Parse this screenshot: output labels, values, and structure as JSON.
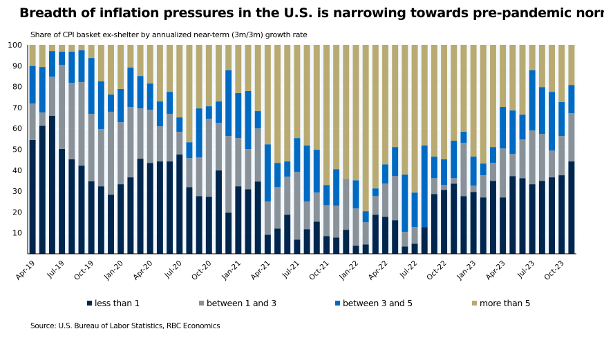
{
  "chart_data": {
    "type": "bar",
    "stacked": true,
    "title": "Breadth of inflation pressures in the U.S. is narrowing towards pre-pandemic norms",
    "subtitle": "Share of CPI basket ex-shelter by annualized near-term (3m/3m) growth rate",
    "source": "Source: U.S. Bureau of Labor Statistics, RBC Economics",
    "xlabel": "",
    "ylabel": "",
    "ylim": [
      0,
      100
    ],
    "yticks": [
      10,
      20,
      30,
      40,
      50,
      60,
      70,
      80,
      90,
      100
    ],
    "grid": true,
    "legend_position": "bottom",
    "categories": [
      "Apr-19",
      "May-19",
      "Jun-19",
      "Jul-19",
      "Aug-19",
      "Sep-19",
      "Oct-19",
      "Nov-19",
      "Dec-19",
      "Jan-20",
      "Feb-20",
      "Mar-20",
      "Apr-20",
      "May-20",
      "Jun-20",
      "Jul-20",
      "Aug-20",
      "Sep-20",
      "Oct-20",
      "Nov-20",
      "Dec-20",
      "Jan-21",
      "Feb-21",
      "Mar-21",
      "Apr-21",
      "May-21",
      "Jun-21",
      "Jul-21",
      "Aug-21",
      "Sep-21",
      "Oct-21",
      "Nov-21",
      "Dec-21",
      "Jan-22",
      "Feb-22",
      "Mar-22",
      "Apr-22",
      "May-22",
      "Jun-22",
      "Jul-22",
      "Aug-22",
      "Sep-22",
      "Oct-22",
      "Nov-22",
      "Dec-22",
      "Jan-23",
      "Feb-23",
      "Mar-23",
      "Apr-23",
      "May-23",
      "Jun-23",
      "Jul-23",
      "Aug-23",
      "Sep-23",
      "Oct-23",
      "Nov-23"
    ],
    "xtick_labels": [
      "Apr-19",
      "Jul-19",
      "Oct-19",
      "Jan-20",
      "Apr-20",
      "Jul-20",
      "Oct-20",
      "Jan-21",
      "Apr-21",
      "Jul-21",
      "Oct-21",
      "Jan-22",
      "Apr-22",
      "Jul-22",
      "Oct-22",
      "Jan-23",
      "Apr-23",
      "Jul-23",
      "Oct-23"
    ],
    "series": [
      {
        "name": "less than 1",
        "color": "#00264D",
        "values": [
          54.5,
          61.3,
          66.1,
          50.2,
          45.2,
          42.2,
          34.7,
          32.3,
          28.3,
          33.3,
          36.6,
          45.5,
          43.5,
          44.2,
          44.2,
          47.5,
          31.9,
          27.6,
          27.3,
          39.9,
          19.7,
          32.3,
          30.9,
          34.6,
          9.1,
          12.1,
          18.7,
          6.8,
          11.8,
          15.4,
          8.5,
          7.8,
          11.5,
          3.9,
          4.5,
          18.7,
          17.7,
          16.1,
          3.5,
          4.8,
          12.8,
          28.6,
          30.6,
          33.6,
          27.6,
          29.6,
          27.0,
          34.9,
          27.0,
          37.2,
          36.2,
          33.3,
          34.9,
          36.6,
          37.6,
          44.2
        ]
      },
      {
        "name": "between 1 and 3",
        "color": "#8A9299",
        "values": [
          17.4,
          6.3,
          18.7,
          40.2,
          36.6,
          40.0,
          32.3,
          27.4,
          39.7,
          29.7,
          33.7,
          24.1,
          25.4,
          16.8,
          22.8,
          10.9,
          13.9,
          18.5,
          37.3,
          22.8,
          36.7,
          23.1,
          19.2,
          25.4,
          15.9,
          19.8,
          18.2,
          32.4,
          13.2,
          13.9,
          14.8,
          15.2,
          24.4,
          17.8,
          10.6,
          8.9,
          15.9,
          21.1,
          7.0,
          8.0,
          0.0,
          7.6,
          2.3,
          2.6,
          25.5,
          3.0,
          10.6,
          8.6,
          23.4,
          10.6,
          18.5,
          25.7,
          22.5,
          12.8,
          18.8,
          23.1
        ]
      },
      {
        "name": "between 3 and 5",
        "color": "#006AC3",
        "values": [
          18.0,
          21.8,
          12.2,
          6.3,
          14.9,
          15.2,
          26.7,
          22.8,
          8.2,
          15.9,
          18.8,
          15.5,
          12.6,
          11.9,
          10.5,
          6.9,
          7.6,
          23.5,
          6.0,
          10.2,
          31.4,
          21.5,
          27.8,
          8.3,
          27.4,
          11.6,
          7.3,
          16.2,
          26.8,
          20.5,
          9.6,
          17.5,
          0.0,
          13.5,
          5.3,
          3.7,
          9.2,
          13.9,
          27.4,
          16.5,
          39.0,
          10.3,
          12.3,
          17.9,
          5.3,
          13.9,
          5.6,
          7.6,
          19.9,
          20.8,
          11.9,
          28.8,
          22.4,
          28.1,
          16.2,
          13.5
        ]
      },
      {
        "name": "more than 5",
        "color": "#B9AA72",
        "values": [
          10.1,
          10.6,
          3.0,
          3.3,
          3.3,
          2.6,
          6.3,
          17.5,
          23.8,
          21.1,
          10.9,
          14.9,
          18.5,
          27.1,
          22.5,
          34.7,
          46.6,
          30.4,
          29.4,
          27.1,
          12.2,
          23.1,
          22.1,
          31.7,
          47.6,
          56.5,
          55.8,
          44.6,
          48.2,
          50.2,
          67.1,
          59.5,
          64.1,
          64.8,
          79.6,
          68.7,
          57.2,
          48.9,
          62.1,
          70.7,
          48.2,
          53.5,
          54.8,
          45.9,
          41.6,
          53.5,
          56.8,
          48.9,
          29.7,
          31.4,
          33.4,
          12.2,
          20.2,
          22.5,
          27.4,
          19.2
        ]
      }
    ]
  },
  "legend": [
    {
      "label": "less than 1",
      "color": "#00264D"
    },
    {
      "label": "between 1 and 3",
      "color": "#8A9299"
    },
    {
      "label": "between 3 and 5",
      "color": "#006AC3"
    },
    {
      "label": "more than 5",
      "color": "#B9AA72"
    }
  ]
}
